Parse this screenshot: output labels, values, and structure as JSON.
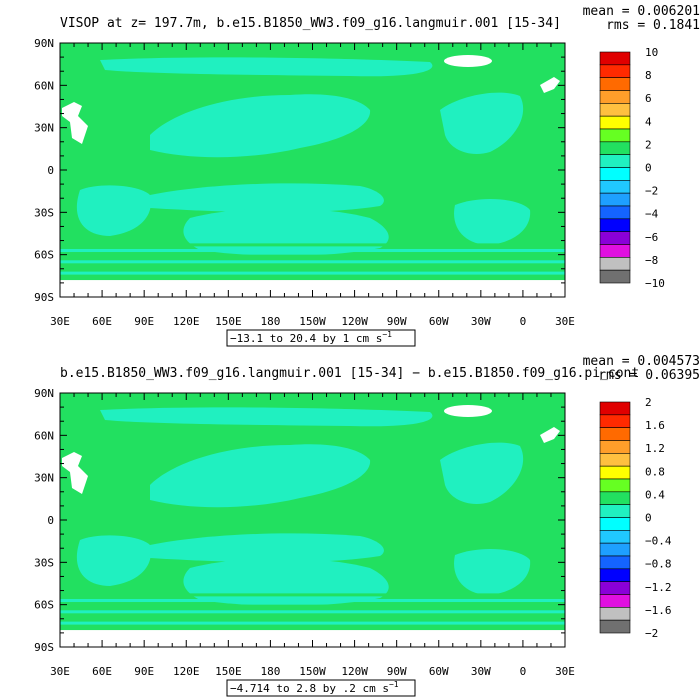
{
  "chart_data": [
    {
      "type": "heatmap",
      "title": "VISOP at z= 197.7m, b.e15.B1850_WW3.f09_g16.langmuir.001 [15-34]",
      "stats": {
        "mean": "mean = 0.006201",
        "rms": "rms = 0.1841"
      },
      "x_ticks": [
        "30E",
        "60E",
        "90E",
        "120E",
        "150E",
        "180",
        "150W",
        "120W",
        "90W",
        "60W",
        "30W",
        "0",
        "30E"
      ],
      "y_ticks": [
        "90N",
        "60N",
        "30N",
        "0",
        "30S",
        "60S",
        "90S"
      ],
      "xlim": [
        30,
        390
      ],
      "ylim": [
        -90,
        90
      ],
      "range_label": "−13.1 to 20.4 by 1 cm s",
      "range_unit_exp": "−1",
      "legend_labels": [
        "10",
        "8",
        "6",
        "4",
        "2",
        "0",
        "−2",
        "−4",
        "−6",
        "−8",
        "−10"
      ],
      "colors": [
        "#e00000",
        "#ff2a00",
        "#ff6a00",
        "#ff9e2a",
        "#ffc040",
        "#ffff00",
        "#66ff22",
        "#22e060",
        "#20f0c0",
        "#00ffff",
        "#20c8ff",
        "#1ea0ff",
        "#1464ff",
        "#0000ff",
        "#8a00d8",
        "#e010e0",
        "#c0c0c0",
        "#707070"
      ],
      "field": {
        "background": "#22e060",
        "band": "#20f0c0",
        "land": "#ffffff"
      }
    },
    {
      "type": "heatmap",
      "title": "b.e15.B1850_WW3.f09_g16.langmuir.001 [15-34] − b.e15.B1850.f09_g16.pi_cont",
      "stats": {
        "mean": "mean = 0.004573",
        "rms": "rms = 0.06395"
      },
      "x_ticks": [
        "30E",
        "60E",
        "90E",
        "120E",
        "150E",
        "180",
        "150W",
        "120W",
        "90W",
        "60W",
        "30W",
        "0",
        "30E"
      ],
      "y_ticks": [
        "90N",
        "60N",
        "30N",
        "0",
        "30S",
        "60S",
        "90S"
      ],
      "xlim": [
        30,
        390
      ],
      "ylim": [
        -90,
        90
      ],
      "range_label": "−4.714 to 2.8 by .2 cm s",
      "range_unit_exp": "−1",
      "legend_labels": [
        "2",
        "1.6",
        "1.2",
        "0.8",
        "0.4",
        "0",
        "−0.4",
        "−0.8",
        "−1.2",
        "−1.6",
        "−2"
      ],
      "colors": [
        "#e00000",
        "#ff2a00",
        "#ff6a00",
        "#ff9e2a",
        "#ffc040",
        "#ffff00",
        "#66ff22",
        "#22e060",
        "#20f0c0",
        "#00ffff",
        "#20c8ff",
        "#1ea0ff",
        "#1464ff",
        "#0000ff",
        "#8a00d8",
        "#e010e0",
        "#c0c0c0",
        "#707070"
      ],
      "field": {
        "background": "#22e060",
        "band": "#20f0c0",
        "land": "#ffffff"
      }
    }
  ]
}
